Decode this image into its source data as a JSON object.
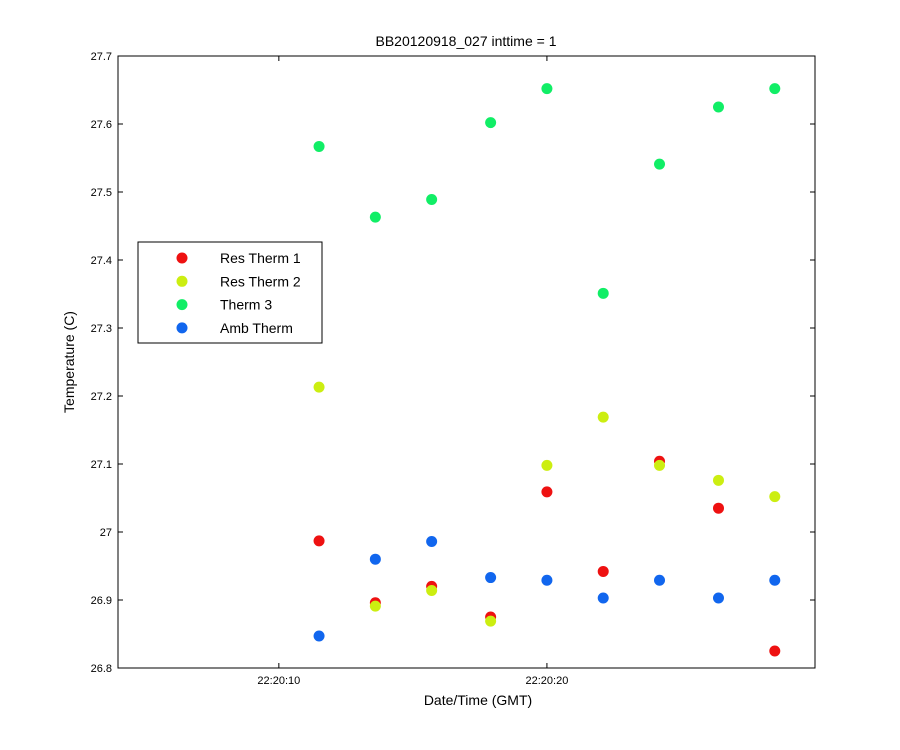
{
  "chart_data": {
    "type": "scatter",
    "title": "BB20120918_027 inttime = 1",
    "xlabel": "Date/Time (GMT)",
    "ylabel": "Temperature (C)",
    "x_time_seconds_range": [
      "22:20:04",
      "22:20:30"
    ],
    "ylim": [
      26.8,
      27.7
    ],
    "y_ticks": [
      "26.8",
      "26.9",
      "27",
      "27.1",
      "27.2",
      "27.3",
      "27.4",
      "27.5",
      "27.6",
      "27.7"
    ],
    "y_tick_values": [
      26.8,
      26.9,
      27.0,
      27.1,
      27.2,
      27.3,
      27.4,
      27.5,
      27.6,
      27.7
    ],
    "x_ticks": [
      "22:20:10",
      "22:20:20"
    ],
    "x": [
      "22:20:11.5",
      "22:20:13.6",
      "22:20:15.7",
      "22:20:17.9",
      "22:20:20.0",
      "22:20:22.1",
      "22:20:24.2",
      "22:20:26.4",
      "22:20:28.5"
    ],
    "grid": false,
    "legend_position": "left",
    "series": [
      {
        "name": "Res Therm 1",
        "color": "#ee1111",
        "values": [
          26.987,
          26.896,
          26.92,
          26.875,
          27.059,
          26.942,
          27.104,
          27.035,
          26.825
        ]
      },
      {
        "name": "Res Therm 2",
        "color": "#ccee11",
        "values": [
          27.213,
          26.891,
          26.914,
          26.869,
          27.098,
          27.169,
          27.098,
          27.076,
          27.052
        ]
      },
      {
        "name": "Therm 3",
        "color": "#11ee66",
        "values": [
          27.567,
          27.463,
          27.489,
          27.602,
          27.652,
          27.351,
          27.541,
          27.625,
          27.652
        ]
      },
      {
        "name": "Amb Therm",
        "color": "#1166ee",
        "values": [
          26.847,
          26.96,
          26.986,
          26.933,
          26.929,
          26.903,
          26.929,
          26.903,
          26.929
        ]
      }
    ]
  }
}
